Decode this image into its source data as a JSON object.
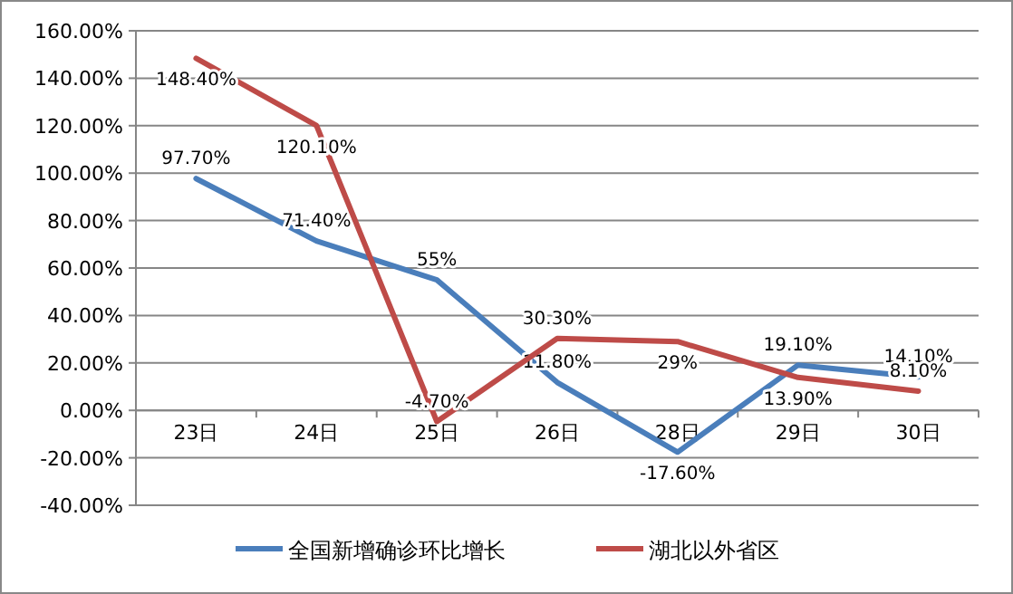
{
  "chart_data": {
    "type": "line",
    "categories": [
      "23日",
      "24日",
      "25日",
      "26日",
      "28日",
      "29日",
      "30日"
    ],
    "series": [
      {
        "name": "全国新增确诊环比增长",
        "color": "#4a7ebb",
        "values": [
          97.7,
          71.4,
          55,
          11.8,
          -17.6,
          19.1,
          14.1
        ],
        "value_labels": [
          "97.70%",
          "71.40%",
          "55%",
          "11.80%",
          "-17.60%",
          "19.10%",
          "14.10%"
        ]
      },
      {
        "name": "湖北以外省区",
        "color": "#be4b48",
        "values": [
          148.4,
          120.1,
          -4.7,
          30.3,
          29,
          13.9,
          8.1
        ],
        "value_labels": [
          "148.40%",
          "120.10%",
          "-4.70%",
          "30.30%",
          "29%",
          "13.90%",
          "8.10%"
        ]
      }
    ],
    "ylim": [
      -40,
      160
    ],
    "yticks": [
      {
        "value": -40,
        "label": "-40.00%"
      },
      {
        "value": -20,
        "label": "-20.00%"
      },
      {
        "value": 0,
        "label": "0.00%"
      },
      {
        "value": 20,
        "label": "20.00%"
      },
      {
        "value": 40,
        "label": "40.00%"
      },
      {
        "value": 60,
        "label": "60.00%"
      },
      {
        "value": 80,
        "label": "80.00%"
      },
      {
        "value": 100,
        "label": "100.00%"
      },
      {
        "value": 120,
        "label": "120.00%"
      },
      {
        "value": 140,
        "label": "140.00%"
      },
      {
        "value": 160,
        "label": "160.00%"
      }
    ],
    "grid": "y",
    "legend": "bottom",
    "marker": "none",
    "line_style": "solid"
  }
}
